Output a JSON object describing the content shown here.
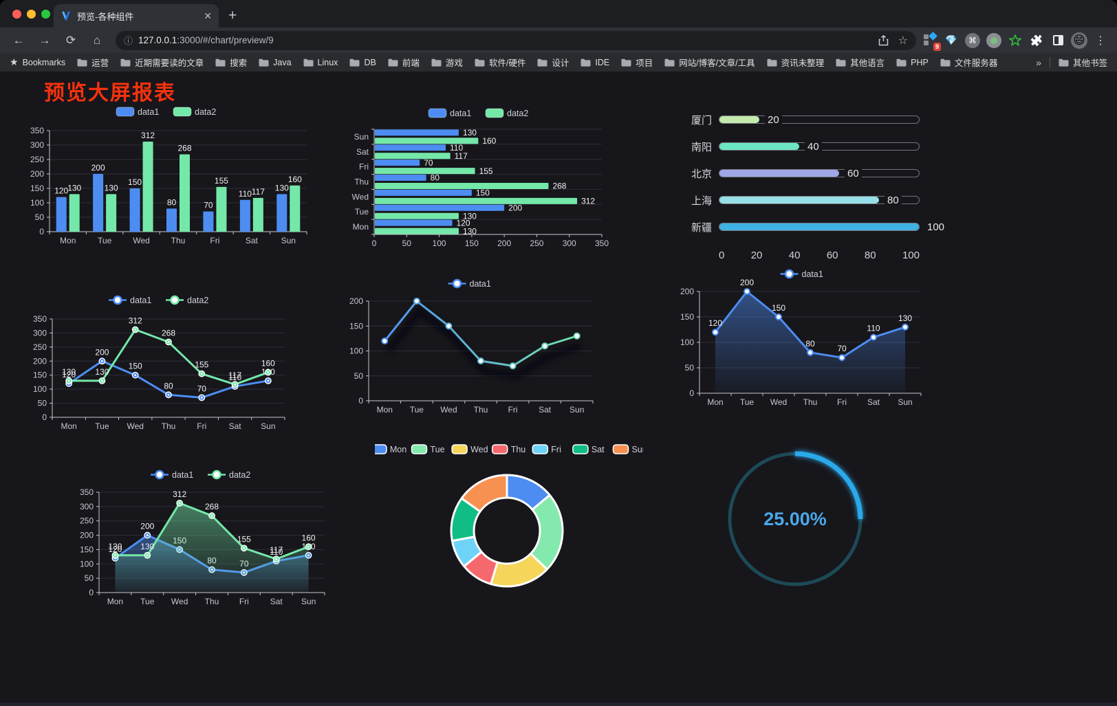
{
  "browser": {
    "tab_title": "预览-各种组件",
    "url_host": "127.0.0.1",
    "url_rest": ":3000/#/chart/preview/9",
    "bookmarks_label": "Bookmarks",
    "bookmarks": [
      "运营",
      "近期需要读的文章",
      "搜索",
      "Java",
      "Linux",
      "DB",
      "前端",
      "游戏",
      "软件/硬件",
      "设计",
      "IDE",
      "项目",
      "网站/博客/文章/工具",
      "资讯未整理",
      "其他语言",
      "PHP",
      "文件服务器"
    ],
    "overflow_chevron": "»",
    "other_bookmarks": "其他书签",
    "extension_badge": "9"
  },
  "page": {
    "title": "预览大屏报表",
    "title_color": "#f4320e",
    "background": "#17161b"
  },
  "chart_data": [
    {
      "id": "bar-grouped",
      "type": "bar",
      "categories": [
        "Mon",
        "Tue",
        "Wed",
        "Thu",
        "Fri",
        "Sat",
        "Sun"
      ],
      "series": [
        {
          "name": "data1",
          "color": "#4d8df2",
          "values": [
            120,
            200,
            150,
            80,
            70,
            110,
            130
          ]
        },
        {
          "name": "data2",
          "color": "#74e8a9",
          "values": [
            130,
            130,
            312,
            268,
            155,
            117,
            160
          ]
        }
      ],
      "ylim": [
        0,
        350
      ],
      "ystep": 50,
      "value_labels": true,
      "legend_position": "top",
      "grid": true
    },
    {
      "id": "bar-horizontal",
      "type": "bar-horizontal",
      "categories": [
        "Mon",
        "Tue",
        "Wed",
        "Thu",
        "Fri",
        "Sat",
        "Sun"
      ],
      "series": [
        {
          "name": "data1",
          "color": "#4d8df2",
          "values": [
            120,
            200,
            150,
            80,
            70,
            110,
            130
          ]
        },
        {
          "name": "data2",
          "color": "#74e8a9",
          "values": [
            130,
            130,
            312,
            268,
            155,
            117,
            160
          ]
        }
      ],
      "xlim": [
        0,
        350
      ],
      "xstep": 50,
      "value_labels": true,
      "legend_position": "top",
      "grid": true
    },
    {
      "id": "progress-bars",
      "type": "progress",
      "items": [
        {
          "label": "厦门",
          "value": 20,
          "color": "#c4ebad"
        },
        {
          "label": "南阳",
          "value": 40,
          "color": "#6be6c1"
        },
        {
          "label": "北京",
          "value": 60,
          "color": "#a0a7e6"
        },
        {
          "label": "上海",
          "value": 80,
          "color": "#96dee8"
        },
        {
          "label": "新疆",
          "value": 100,
          "color": "#3fb1e3"
        }
      ],
      "xlim": [
        0,
        100
      ],
      "axis_ticks": [
        0,
        20,
        40,
        60,
        80,
        100
      ]
    },
    {
      "id": "line-two",
      "type": "line",
      "categories": [
        "Mon",
        "Tue",
        "Wed",
        "Thu",
        "Fri",
        "Sat",
        "Sun"
      ],
      "series": [
        {
          "name": "data1",
          "color": "#4d8df2",
          "values": [
            120,
            200,
            150,
            80,
            70,
            110,
            130
          ]
        },
        {
          "name": "data2",
          "color": "#74e8a9",
          "values": [
            130,
            130,
            312,
            268,
            155,
            117,
            160
          ]
        }
      ],
      "ylim": [
        0,
        350
      ],
      "ystep": 50,
      "value_labels": true,
      "legend_position": "top",
      "grid": true
    },
    {
      "id": "line-gradient",
      "type": "line",
      "categories": [
        "Mon",
        "Tue",
        "Wed",
        "Thu",
        "Fri",
        "Sat",
        "Sun"
      ],
      "series": [
        {
          "name": "data1",
          "gradient": [
            "#4d8df2",
            "#74e8a9"
          ],
          "color": "#4d8df2",
          "values": [
            120,
            200,
            150,
            80,
            70,
            110,
            130
          ],
          "shadow": true
        }
      ],
      "ylim": [
        0,
        200
      ],
      "ystep": 50,
      "value_labels": false,
      "legend_position": "top",
      "grid": true
    },
    {
      "id": "line-area",
      "type": "line",
      "categories": [
        "Mon",
        "Tue",
        "Wed",
        "Thu",
        "Fri",
        "Sat",
        "Sun"
      ],
      "series": [
        {
          "name": "data1",
          "color": "#4d8df2",
          "values": [
            120,
            200,
            150,
            80,
            70,
            110,
            130
          ],
          "area": true
        }
      ],
      "ylim": [
        0,
        200
      ],
      "ystep": 50,
      "value_labels": true,
      "legend_position": "top",
      "grid": true
    },
    {
      "id": "line-two-area",
      "type": "line",
      "categories": [
        "Mon",
        "Tue",
        "Wed",
        "Thu",
        "Fri",
        "Sat",
        "Sun"
      ],
      "series": [
        {
          "name": "data1",
          "color": "#4d8df2",
          "values": [
            120,
            200,
            150,
            80,
            70,
            110,
            130
          ],
          "area": true
        },
        {
          "name": "data2",
          "color": "#74e8a9",
          "values": [
            130,
            130,
            312,
            268,
            155,
            117,
            160
          ],
          "area": true
        }
      ],
      "ylim": [
        0,
        350
      ],
      "ystep": 50,
      "value_labels": true,
      "legend_position": "top",
      "grid": true
    },
    {
      "id": "donut",
      "type": "pie",
      "categories": [
        "Mon",
        "Tue",
        "Wed",
        "Thu",
        "Fri",
        "Sat",
        "Sun"
      ],
      "values": [
        120,
        200,
        150,
        80,
        70,
        110,
        130
      ],
      "colors": [
        "#4d8df2",
        "#84e9ad",
        "#f5d65b",
        "#f5696e",
        "#6fd3f8",
        "#10bd84",
        "#f79152"
      ],
      "border_color": "#ffffff",
      "legend_position": "top"
    },
    {
      "id": "gauge",
      "type": "gauge",
      "value": 25,
      "max": 100,
      "label": "25.00%",
      "color": "#2aa9ea",
      "track_color": "#1d4a57",
      "text_color": "#4aa8e9"
    }
  ]
}
